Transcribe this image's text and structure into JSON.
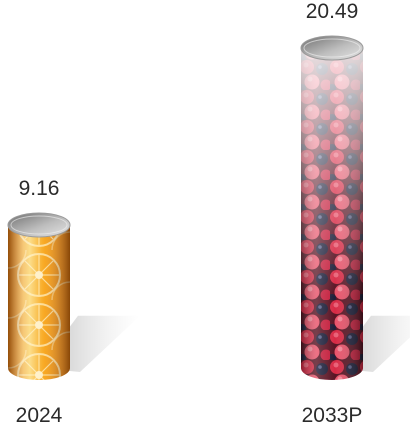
{
  "chart_data": {
    "type": "bar",
    "categories": [
      "2024",
      "2033P"
    ],
    "values": [
      9.16,
      20.49
    ],
    "value_labels": [
      "9.16",
      "20.49"
    ],
    "title": "",
    "xlabel": "",
    "ylabel": "",
    "ylim": [
      0,
      20.49
    ],
    "grid": false,
    "legend": "none",
    "bar_style": [
      "orange-slices",
      "mixed-berries"
    ],
    "colors": {
      "orange_light": "#fcd97a",
      "orange_mid": "#f8a419",
      "orange_dark": "#e3760b",
      "berry_red": "#d72a45",
      "berry_pink": "#e8546b",
      "berry_dark": "#1d1f3a",
      "cap_light": "#e6e6e6",
      "cap_dark": "#6e6e6e",
      "text": "#2b2b2b"
    }
  }
}
